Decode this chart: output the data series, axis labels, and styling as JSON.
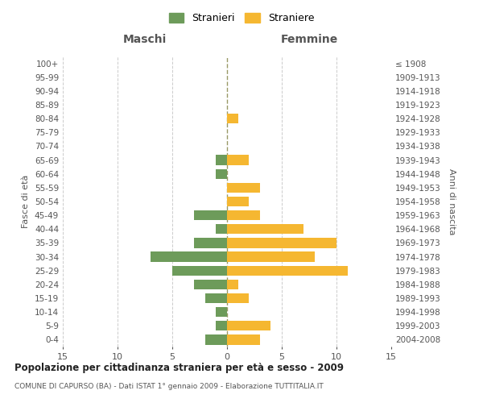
{
  "age_groups": [
    "0-4",
    "5-9",
    "10-14",
    "15-19",
    "20-24",
    "25-29",
    "30-34",
    "35-39",
    "40-44",
    "45-49",
    "50-54",
    "55-59",
    "60-64",
    "65-69",
    "70-74",
    "75-79",
    "80-84",
    "85-89",
    "90-94",
    "95-99",
    "100+"
  ],
  "birth_years": [
    "2004-2008",
    "1999-2003",
    "1994-1998",
    "1989-1993",
    "1984-1988",
    "1979-1983",
    "1974-1978",
    "1969-1973",
    "1964-1968",
    "1959-1963",
    "1954-1958",
    "1949-1953",
    "1944-1948",
    "1939-1943",
    "1934-1938",
    "1929-1933",
    "1924-1928",
    "1919-1923",
    "1914-1918",
    "1909-1913",
    "≤ 1908"
  ],
  "maschi": [
    2,
    1,
    1,
    2,
    3,
    5,
    7,
    3,
    1,
    3,
    0,
    0,
    1,
    1,
    0,
    0,
    0,
    0,
    0,
    0,
    0
  ],
  "femmine": [
    3,
    4,
    0,
    2,
    1,
    11,
    8,
    10,
    7,
    3,
    2,
    3,
    0,
    2,
    0,
    0,
    1,
    0,
    0,
    0,
    0
  ],
  "color_maschi": "#6d9b5a",
  "color_femmine": "#f5b731",
  "title": "Popolazione per cittadinanza straniera per età e sesso - 2009",
  "subtitle": "COMUNE DI CAPURSO (BA) - Dati ISTAT 1° gennaio 2009 - Elaborazione TUTTITALIA.IT",
  "xlabel_left": "Maschi",
  "xlabel_right": "Femmine",
  "ylabel_left": "Fasce di età",
  "ylabel_right": "Anni di nascita",
  "legend_maschi": "Stranieri",
  "legend_femmine": "Straniere",
  "xlim": 15,
  "background_color": "#ffffff",
  "grid_color": "#cccccc",
  "text_color": "#555555"
}
